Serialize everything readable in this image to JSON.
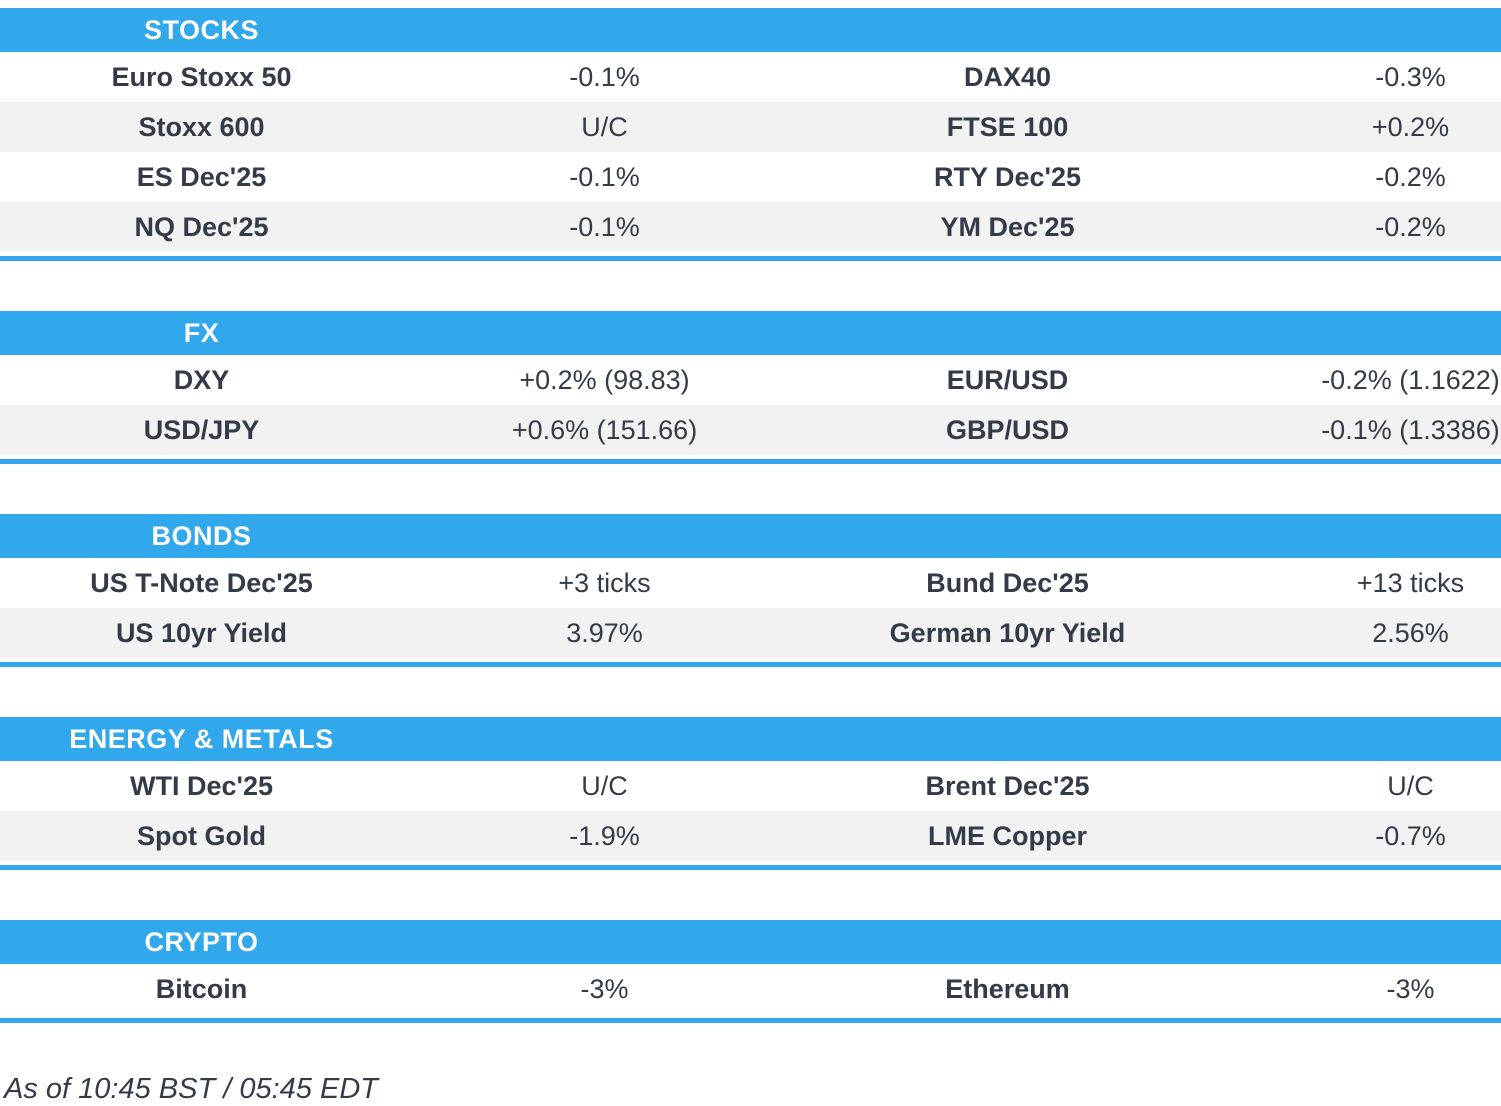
{
  "colors": {
    "accent_blue": "#31a8ec",
    "row_alt_gray": "#f2f2f2",
    "text_dark": "#333b48",
    "header_text": "#ffffff"
  },
  "sections": [
    {
      "title": "STOCKS",
      "rows": [
        {
          "cells": [
            "Euro Stoxx 50",
            "-0.1%",
            "DAX40",
            "-0.3%"
          ]
        },
        {
          "cells": [
            "Stoxx 600",
            "U/C",
            "FTSE 100",
            "+0.2%"
          ]
        },
        {
          "cells": [
            "ES Dec'25",
            "-0.1%",
            "RTY Dec'25",
            "-0.2%"
          ]
        },
        {
          "cells": [
            "NQ Dec'25",
            "-0.1%",
            "YM Dec'25",
            "-0.2%"
          ]
        }
      ]
    },
    {
      "title": "FX",
      "rows": [
        {
          "cells": [
            "DXY",
            "+0.2% (98.83)",
            "EUR/USD",
            "-0.2% (1.1622)"
          ]
        },
        {
          "cells": [
            "USD/JPY",
            "+0.6% (151.66)",
            "GBP/USD",
            "-0.1% (1.3386)"
          ]
        }
      ]
    },
    {
      "title": "BONDS",
      "rows": [
        {
          "cells": [
            "US T-Note Dec'25",
            "+3 ticks",
            "Bund Dec'25",
            "+13 ticks"
          ]
        },
        {
          "cells": [
            "US 10yr Yield",
            "3.97%",
            "German 10yr Yield",
            "2.56%"
          ]
        }
      ]
    },
    {
      "title": "ENERGY & METALS",
      "rows": [
        {
          "cells": [
            "WTI Dec'25",
            "U/C",
            "Brent Dec'25",
            "U/C"
          ]
        },
        {
          "cells": [
            "Spot Gold",
            "-1.9%",
            "LME Copper",
            "-0.7%"
          ]
        }
      ]
    },
    {
      "title": "CRYPTO",
      "rows": [
        {
          "cells": [
            "Bitcoin",
            "-3%",
            "Ethereum",
            "-3%"
          ]
        }
      ]
    }
  ],
  "footer": {
    "as_of": "As of 10:45 BST / 05:45 EDT"
  }
}
